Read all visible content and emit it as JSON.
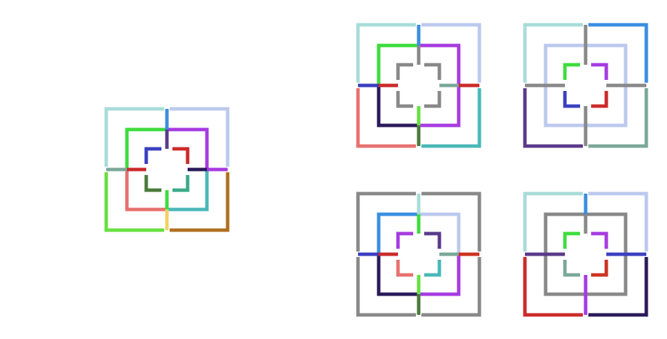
{
  "puzzle": {
    "colors": {
      "teal_light": "#a8dcd9",
      "blue_light": "#bcc9ee",
      "blue": "#3a8ee0",
      "green": "#3ddc3d",
      "purple": "#a63be0",
      "indigo": "#3a3fc0",
      "red": "#cc2a2a",
      "dark_green": "#4a7a3a",
      "sea_green": "#3aaa88",
      "salmon": "#e87070",
      "cyan": "#4ab8b8",
      "navy": "#2a1a5a",
      "lime": "#66e040",
      "yellow": "#f0d060",
      "brown": "#b07020",
      "grey_green": "#7aa898",
      "grey": "#888888",
      "violet": "#5a3a8a",
      "orange_red": "#cc3322"
    },
    "target": {
      "name": "target-pattern"
    },
    "options": [
      {
        "name": "option-1"
      },
      {
        "name": "option-2"
      },
      {
        "name": "option-3"
      },
      {
        "name": "option-4"
      }
    ]
  }
}
